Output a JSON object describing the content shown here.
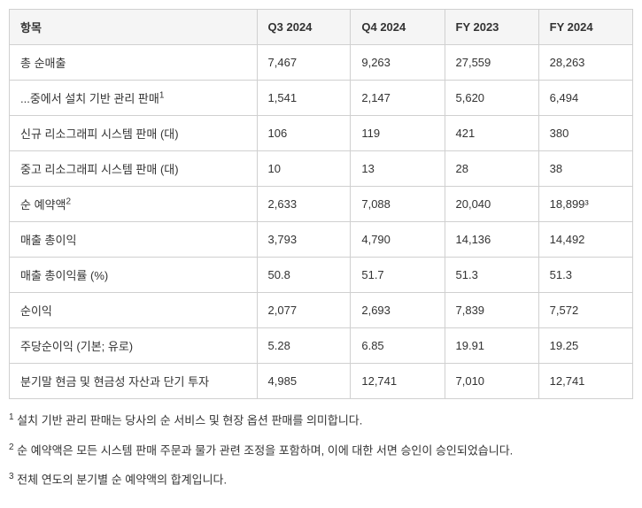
{
  "table": {
    "columns": [
      "항목",
      "Q3 2024",
      "Q4 2024",
      "FY 2023",
      "FY 2024"
    ],
    "rows": [
      {
        "label": "총 순매출",
        "sup": "",
        "values": [
          "7,467",
          "9,263",
          "27,559",
          "28,263"
        ]
      },
      {
        "label": "...중에서 설치 기반 관리 판매",
        "sup": "1",
        "values": [
          "1,541",
          "2,147",
          "5,620",
          "6,494"
        ]
      },
      {
        "label": "신규 리소그래피 시스템 판매 (대)",
        "sup": "",
        "values": [
          "106",
          "119",
          "421",
          "380"
        ]
      },
      {
        "label": "중고 리소그래피 시스템 판매 (대)",
        "sup": "",
        "values": [
          "10",
          "13",
          "28",
          "38"
        ]
      },
      {
        "label": "순 예약액",
        "sup": "2",
        "values": [
          "2,633",
          "7,088",
          "20,040",
          "18,899³"
        ]
      },
      {
        "label": "매출 총이익",
        "sup": "",
        "values": [
          "3,793",
          "4,790",
          "14,136",
          "14,492"
        ]
      },
      {
        "label": "매출 총이익률 (%)",
        "sup": "",
        "values": [
          "50.8",
          "51.7",
          "51.3",
          "51.3"
        ]
      },
      {
        "label": "순이익",
        "sup": "",
        "values": [
          "2,077",
          "2,693",
          "7,839",
          "7,572"
        ]
      },
      {
        "label": "주당순이익 (기본; 유로)",
        "sup": "",
        "values": [
          "5.28",
          "6.85",
          "19.91",
          "19.25"
        ]
      },
      {
        "label": "분기말 현금 및 현금성 자산과 단기 투자",
        "sup": "",
        "values": [
          "4,985",
          "12,741",
          "7,010",
          "12,741"
        ]
      }
    ],
    "header_bg": "#f5f5f5",
    "border_color": "#d0d0d0",
    "text_color": "#333333",
    "font_size": 13
  },
  "footnotes": [
    {
      "marker": "1",
      "text": "설치 기반 관리 판매는 당사의 순 서비스 및 현장 옵션 판매를 의미합니다."
    },
    {
      "marker": "2",
      "text": "순 예약액은 모든 시스템 판매 주문과 물가 관련 조정을 포함하며, 이에 대한 서면 승인이 승인되었습니다."
    },
    {
      "marker": "3",
      "text": "전체 연도의 분기별 순 예약액의 합계입니다."
    }
  ]
}
